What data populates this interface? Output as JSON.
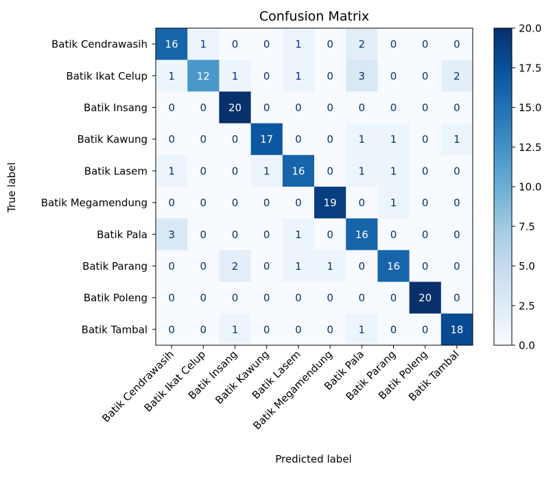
{
  "chart_data": {
    "type": "heatmap",
    "title": "Confusion Matrix",
    "xlabel": "Predicted label",
    "ylabel": "True label",
    "labels": [
      "Batik Cendrawasih",
      "Batik Ikat Celup",
      "Batik Insang",
      "Batik Kawung",
      "Batik Lasem",
      "Batik Megamendung",
      "Batik Pala",
      "Batik Parang",
      "Batik Poleng",
      "Batik Tambal"
    ],
    "matrix": [
      [
        16,
        1,
        0,
        0,
        1,
        0,
        2,
        0,
        0,
        0
      ],
      [
        1,
        12,
        1,
        0,
        1,
        0,
        3,
        0,
        0,
        2
      ],
      [
        0,
        0,
        20,
        0,
        0,
        0,
        0,
        0,
        0,
        0
      ],
      [
        0,
        0,
        0,
        17,
        0,
        0,
        1,
        1,
        0,
        1
      ],
      [
        1,
        0,
        0,
        1,
        16,
        0,
        1,
        1,
        0,
        0
      ],
      [
        0,
        0,
        0,
        0,
        0,
        19,
        0,
        1,
        0,
        0
      ],
      [
        3,
        0,
        0,
        0,
        1,
        0,
        16,
        0,
        0,
        0
      ],
      [
        0,
        0,
        2,
        0,
        1,
        1,
        0,
        16,
        0,
        0
      ],
      [
        0,
        0,
        0,
        0,
        0,
        0,
        0,
        0,
        20,
        0
      ],
      [
        0,
        0,
        1,
        0,
        0,
        0,
        1,
        0,
        0,
        18
      ]
    ],
    "colormap": "Blues",
    "vmin": 0,
    "vmax": 20,
    "colorbar_ticks": [
      "0.0",
      "2.5",
      "5.0",
      "7.5",
      "10.0",
      "12.5",
      "15.0",
      "17.5",
      "20.0"
    ],
    "text_color_light": "#ffffff",
    "text_color_dark": "#08306b"
  }
}
